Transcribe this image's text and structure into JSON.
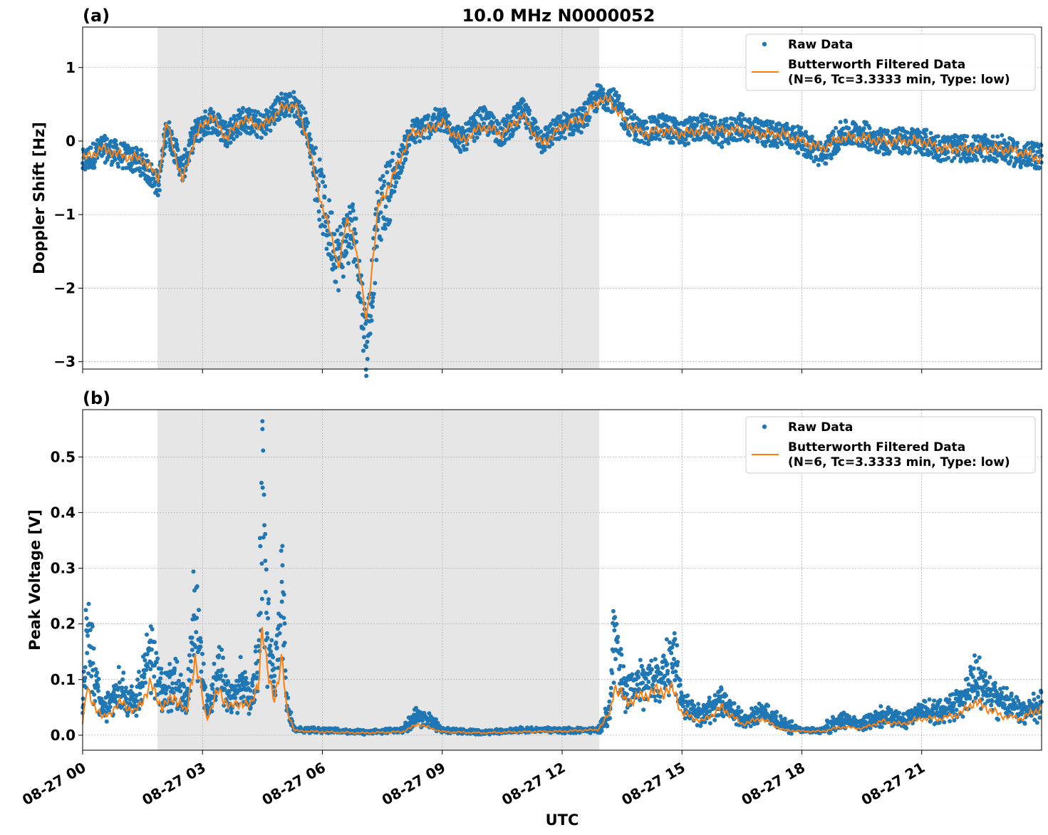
{
  "figure": {
    "title": "10.0 MHz N0000052",
    "xlabel": "UTC",
    "x_tick_labels": [
      "08-27 00",
      "08-27 03",
      "08-27 06",
      "08-27 09",
      "08-27 12",
      "08-27 15",
      "08-27 18",
      "08-27 21"
    ],
    "colors": {
      "raw": "#1f77b4",
      "filtered": "#ff7f0e",
      "shade": "#e6e6e6",
      "grid": "#b0b0b0"
    }
  },
  "chart_data": [
    {
      "type": "scatter",
      "panel_label": "(a)",
      "ylabel": "Doppler Shift [Hz]",
      "xlim_hours": [
        0,
        24
      ],
      "ylim": [
        -3.1,
        1.55
      ],
      "y_ticks": [
        1,
        0,
        -1,
        -2,
        -3
      ],
      "y_tick_labels": [
        "1",
        "0",
        "−1",
        "−2",
        "−3"
      ],
      "shaded_interval_hours": [
        1.87,
        12.93
      ],
      "grid": true,
      "legend": {
        "position": "top-right",
        "entries": [
          "Raw Data",
          "Butterworth Filtered Data",
          "(N=6, Tc=3.3333 min, Type: low)"
        ]
      },
      "series": [
        {
          "name": "Raw Data",
          "style": "dots",
          "x_hours": [
            0,
            0.5,
            1,
            1.5,
            1.9,
            2.1,
            2.5,
            2.8,
            3.2,
            3.6,
            4,
            4.5,
            5,
            5.3,
            5.6,
            5.9,
            6.1,
            6.4,
            6.6,
            6.8,
            7.1,
            7.4,
            7.8,
            8.2,
            8.6,
            9,
            9.5,
            10,
            10.5,
            11,
            11.5,
            12,
            12.5,
            12.9,
            13.2,
            13.6,
            14,
            14.5,
            15,
            15.5,
            16,
            16.5,
            17,
            17.5,
            18,
            18.5,
            19,
            19.5,
            20,
            20.5,
            21,
            21.5,
            22,
            22.5,
            23,
            23.5,
            24
          ],
          "values": [
            -0.3,
            -0.1,
            -0.2,
            -0.3,
            -0.6,
            0.2,
            -0.4,
            0.1,
            0.3,
            0.1,
            0.3,
            0.2,
            0.5,
            0.5,
            0.2,
            -0.6,
            -1.1,
            -1.6,
            -1.3,
            -1.2,
            -2.8,
            -1.0,
            -0.5,
            0.1,
            0.2,
            0.3,
            0.0,
            0.3,
            0.1,
            0.4,
            0.0,
            0.2,
            0.3,
            0.6,
            0.6,
            0.3,
            0.1,
            0.2,
            0.1,
            0.2,
            0.1,
            0.2,
            0.1,
            0.1,
            0.0,
            -0.2,
            0.1,
            0.1,
            0.0,
            0.0,
            0.0,
            -0.1,
            -0.1,
            -0.1,
            -0.1,
            -0.2,
            -0.2
          ]
        },
        {
          "name": "Butterworth Filtered Data",
          "style": "line",
          "x_hours": [
            0,
            0.5,
            1,
            1.5,
            1.9,
            2.1,
            2.5,
            2.8,
            3.2,
            3.6,
            4,
            4.5,
            5,
            5.3,
            5.6,
            5.9,
            6.1,
            6.4,
            6.6,
            6.8,
            7.1,
            7.4,
            7.8,
            8.2,
            8.6,
            9,
            9.5,
            10,
            10.5,
            11,
            11.5,
            12,
            12.5,
            12.9,
            13.2,
            13.6,
            14,
            14.5,
            15,
            15.5,
            16,
            16.5,
            17,
            17.5,
            18,
            18.5,
            19,
            19.5,
            20,
            20.5,
            21,
            21.5,
            22,
            22.5,
            23,
            23.5,
            24
          ],
          "values": [
            -0.25,
            -0.1,
            -0.2,
            -0.25,
            -0.5,
            0.25,
            -0.55,
            0.05,
            0.35,
            0.05,
            0.3,
            0.2,
            0.45,
            0.5,
            0.1,
            -0.7,
            -1.05,
            -1.7,
            -1.1,
            -1.3,
            -2.45,
            -0.9,
            -0.45,
            0.1,
            0.15,
            0.25,
            0.0,
            0.2,
            0.1,
            0.35,
            -0.05,
            0.2,
            0.3,
            0.55,
            0.55,
            0.25,
            0.1,
            0.15,
            0.1,
            0.15,
            0.15,
            0.15,
            0.1,
            0.1,
            0.0,
            -0.1,
            0.05,
            0.05,
            0.0,
            0.0,
            0.0,
            -0.1,
            -0.1,
            -0.1,
            -0.1,
            -0.15,
            -0.25
          ]
        }
      ]
    },
    {
      "type": "scatter",
      "panel_label": "(b)",
      "ylabel": "Peak Voltage [V]",
      "xlim_hours": [
        0,
        24
      ],
      "ylim": [
        -0.027,
        0.585
      ],
      "y_ticks": [
        0.0,
        0.1,
        0.2,
        0.3,
        0.4,
        0.5
      ],
      "y_tick_labels": [
        "0.0",
        "0.1",
        "0.2",
        "0.3",
        "0.4",
        "0.5"
      ],
      "shaded_interval_hours": [
        1.87,
        12.93
      ],
      "grid": true,
      "legend": {
        "position": "top-right",
        "entries": [
          "Raw Data",
          "Butterworth Filtered Data",
          "(N=6, Tc=3.3333 min, Type: low)"
        ]
      },
      "series": [
        {
          "name": "Raw Data",
          "style": "dots",
          "x_hours": [
            0,
            0.1,
            0.5,
            1,
            1.3,
            1.7,
            2.0,
            2.3,
            2.6,
            2.8,
            3.1,
            3.4,
            3.7,
            4.0,
            4.2,
            4.4,
            4.5,
            4.6,
            4.8,
            5.0,
            5.1,
            5.3,
            6,
            7,
            8,
            8.4,
            9,
            10,
            11,
            12,
            12.9,
            13.2,
            13.3,
            13.6,
            14,
            14.4,
            14.8,
            15,
            15.5,
            16,
            16.5,
            17,
            17.5,
            18,
            18.5,
            19,
            19.5,
            20,
            20.5,
            21,
            21.5,
            22,
            22.3,
            22.6,
            23,
            23.5,
            24
          ],
          "values": [
            0.04,
            0.21,
            0.05,
            0.1,
            0.06,
            0.17,
            0.08,
            0.12,
            0.06,
            0.26,
            0.05,
            0.14,
            0.07,
            0.11,
            0.08,
            0.16,
            0.55,
            0.22,
            0.12,
            0.34,
            0.07,
            0.01,
            0.01,
            0.005,
            0.01,
            0.04,
            0.01,
            0.005,
            0.01,
            0.01,
            0.01,
            0.05,
            0.21,
            0.09,
            0.11,
            0.12,
            0.17,
            0.07,
            0.04,
            0.07,
            0.03,
            0.05,
            0.02,
            0.01,
            0.01,
            0.03,
            0.02,
            0.04,
            0.03,
            0.05,
            0.05,
            0.07,
            0.12,
            0.09,
            0.07,
            0.05,
            0.06
          ]
        },
        {
          "name": "Butterworth Filtered Data",
          "style": "line",
          "x_hours": [
            0,
            0.1,
            0.5,
            1,
            1.3,
            1.7,
            2.0,
            2.3,
            2.6,
            2.8,
            3.1,
            3.4,
            3.7,
            4.0,
            4.2,
            4.4,
            4.5,
            4.6,
            4.8,
            5.0,
            5.1,
            5.3,
            6,
            7,
            8,
            8.4,
            9,
            10,
            11,
            12,
            12.9,
            13.2,
            13.3,
            13.6,
            14,
            14.4,
            14.8,
            15,
            15.5,
            16,
            16.5,
            17,
            17.5,
            18,
            18.5,
            19,
            19.5,
            20,
            20.5,
            21,
            21.5,
            22,
            22.3,
            22.6,
            23,
            23.5,
            24
          ],
          "values": [
            0.02,
            0.08,
            0.03,
            0.06,
            0.04,
            0.09,
            0.05,
            0.07,
            0.04,
            0.14,
            0.03,
            0.08,
            0.05,
            0.06,
            0.05,
            0.1,
            0.19,
            0.12,
            0.07,
            0.13,
            0.05,
            0.008,
            0.006,
            0.004,
            0.006,
            0.02,
            0.006,
            0.004,
            0.006,
            0.007,
            0.01,
            0.04,
            0.09,
            0.06,
            0.07,
            0.08,
            0.08,
            0.04,
            0.025,
            0.05,
            0.02,
            0.03,
            0.01,
            0.007,
            0.007,
            0.015,
            0.012,
            0.025,
            0.02,
            0.03,
            0.03,
            0.04,
            0.06,
            0.05,
            0.035,
            0.03,
            0.05
          ]
        }
      ]
    }
  ]
}
